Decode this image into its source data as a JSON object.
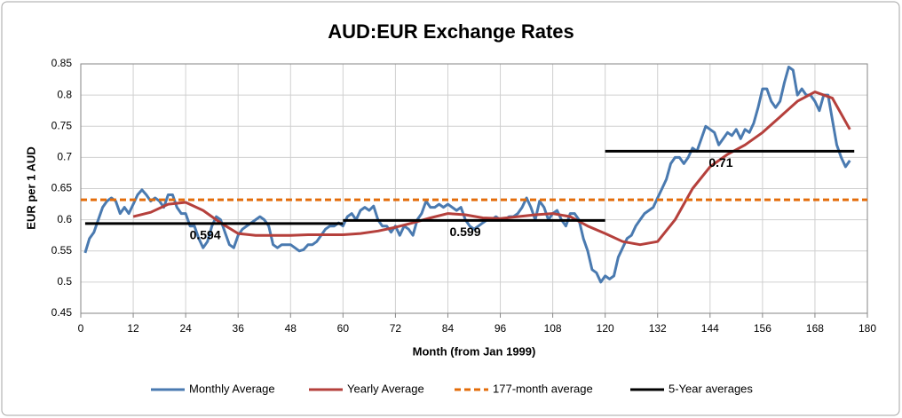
{
  "chart_data": {
    "type": "line",
    "title": "AUD:EUR  Exchange Rates",
    "x_label": "Month (from Jan 1999)",
    "y_label": "EUR per 1 AUD",
    "xlim": [
      0,
      180
    ],
    "xticks": [
      0,
      12,
      24,
      36,
      48,
      60,
      72,
      84,
      96,
      108,
      120,
      132,
      144,
      156,
      168,
      180
    ],
    "ylim": [
      0.45,
      0.85
    ],
    "yticks": [
      0.45,
      0.5,
      0.55,
      0.6,
      0.65,
      0.7,
      0.75,
      0.8,
      0.85
    ],
    "grid": true,
    "legend": "bottom",
    "series": [
      {
        "name": "Monthly Average",
        "color": "#4a7ab0",
        "width": 3,
        "x": [
          1,
          2,
          3,
          4,
          5,
          6,
          7,
          8,
          9,
          10,
          11,
          12,
          13,
          14,
          15,
          16,
          17,
          18,
          19,
          20,
          21,
          22,
          23,
          24,
          25,
          26,
          27,
          28,
          29,
          30,
          31,
          32,
          33,
          34,
          35,
          36,
          37,
          38,
          39,
          40,
          41,
          42,
          43,
          44,
          45,
          46,
          47,
          48,
          49,
          50,
          51,
          52,
          53,
          54,
          55,
          56,
          57,
          58,
          59,
          60,
          61,
          62,
          63,
          64,
          65,
          66,
          67,
          68,
          69,
          70,
          71,
          72,
          73,
          74,
          75,
          76,
          77,
          78,
          79,
          80,
          81,
          82,
          83,
          84,
          85,
          86,
          87,
          88,
          89,
          90,
          91,
          92,
          93,
          94,
          95,
          96,
          97,
          98,
          99,
          100,
          101,
          102,
          103,
          104,
          105,
          106,
          107,
          108,
          109,
          110,
          111,
          112,
          113,
          114,
          115,
          116,
          117,
          118,
          119,
          120,
          121,
          122,
          123,
          124,
          125,
          126,
          127,
          128,
          129,
          130,
          131,
          132,
          133,
          134,
          135,
          136,
          137,
          138,
          139,
          140,
          141,
          142,
          143,
          144,
          145,
          146,
          147,
          148,
          149,
          150,
          151,
          152,
          153,
          154,
          155,
          156,
          157,
          158,
          159,
          160,
          161,
          162,
          163,
          164,
          165,
          166,
          167,
          168,
          169,
          170,
          171,
          172,
          173,
          174,
          175,
          176
        ],
        "values": [
          0.547,
          0.57,
          0.58,
          0.6,
          0.62,
          0.63,
          0.635,
          0.63,
          0.61,
          0.62,
          0.61,
          0.625,
          0.64,
          0.648,
          0.64,
          0.63,
          0.635,
          0.63,
          0.62,
          0.64,
          0.64,
          0.62,
          0.61,
          0.61,
          0.59,
          0.59,
          0.57,
          0.555,
          0.565,
          0.59,
          0.605,
          0.6,
          0.58,
          0.56,
          0.555,
          0.575,
          0.585,
          0.59,
          0.595,
          0.6,
          0.605,
          0.6,
          0.59,
          0.56,
          0.555,
          0.56,
          0.56,
          0.56,
          0.555,
          0.55,
          0.552,
          0.56,
          0.56,
          0.565,
          0.575,
          0.585,
          0.59,
          0.59,
          0.595,
          0.59,
          0.605,
          0.61,
          0.6,
          0.615,
          0.62,
          0.615,
          0.622,
          0.6,
          0.59,
          0.59,
          0.58,
          0.59,
          0.575,
          0.59,
          0.585,
          0.575,
          0.6,
          0.61,
          0.63,
          0.62,
          0.62,
          0.625,
          0.62,
          0.625,
          0.62,
          0.615,
          0.62,
          0.6,
          0.59,
          0.585,
          0.59,
          0.595,
          0.6,
          0.6,
          0.605,
          0.6,
          0.6,
          0.605,
          0.605,
          0.61,
          0.62,
          0.635,
          0.62,
          0.6,
          0.63,
          0.62,
          0.6,
          0.61,
          0.615,
          0.6,
          0.59,
          0.61,
          0.61,
          0.6,
          0.57,
          0.55,
          0.52,
          0.515,
          0.5,
          0.51,
          0.505,
          0.51,
          0.54,
          0.555,
          0.57,
          0.575,
          0.59,
          0.6,
          0.61,
          0.615,
          0.62,
          0.635,
          0.65,
          0.665,
          0.69,
          0.7,
          0.7,
          0.69,
          0.7,
          0.715,
          0.71,
          0.73,
          0.75,
          0.745,
          0.74,
          0.72,
          0.73,
          0.74,
          0.735,
          0.745,
          0.73,
          0.745,
          0.74,
          0.755,
          0.78,
          0.81,
          0.81,
          0.79,
          0.78,
          0.79,
          0.82,
          0.845,
          0.84,
          0.8,
          0.81,
          0.8,
          0.8,
          0.79,
          0.775,
          0.8,
          0.8,
          0.76,
          0.72,
          0.7,
          0.685,
          0.695
        ]
      },
      {
        "name": "Yearly Average",
        "color": "#b5403c",
        "width": 3,
        "x": [
          12,
          16,
          20,
          24,
          28,
          32,
          36,
          40,
          44,
          48,
          52,
          56,
          60,
          64,
          68,
          72,
          76,
          80,
          84,
          88,
          92,
          96,
          100,
          104,
          108,
          112,
          116,
          120,
          124,
          128,
          132,
          136,
          140,
          144,
          148,
          152,
          156,
          160,
          164,
          168,
          172,
          176
        ],
        "values": [
          0.605,
          0.612,
          0.625,
          0.628,
          0.615,
          0.595,
          0.578,
          0.575,
          0.575,
          0.575,
          0.576,
          0.576,
          0.576,
          0.578,
          0.582,
          0.588,
          0.595,
          0.603,
          0.61,
          0.608,
          0.603,
          0.602,
          0.605,
          0.608,
          0.61,
          0.605,
          0.59,
          0.578,
          0.565,
          0.56,
          0.565,
          0.6,
          0.65,
          0.685,
          0.705,
          0.72,
          0.74,
          0.765,
          0.79,
          0.805,
          0.795,
          0.745
        ]
      },
      {
        "name": "177-month average",
        "color": "#e36c0a",
        "width": 3,
        "dashed": true,
        "x": [
          0,
          180
        ],
        "values": [
          0.632,
          0.632
        ]
      },
      {
        "name": "5-Year averages",
        "color": "#000000",
        "width": 3,
        "segments": [
          {
            "x": [
              1,
              60
            ],
            "value": 0.594
          },
          {
            "x": [
              60,
              120
            ],
            "value": 0.599
          },
          {
            "x": [
              120,
              177
            ],
            "value": 0.71
          }
        ]
      }
    ]
  }
}
